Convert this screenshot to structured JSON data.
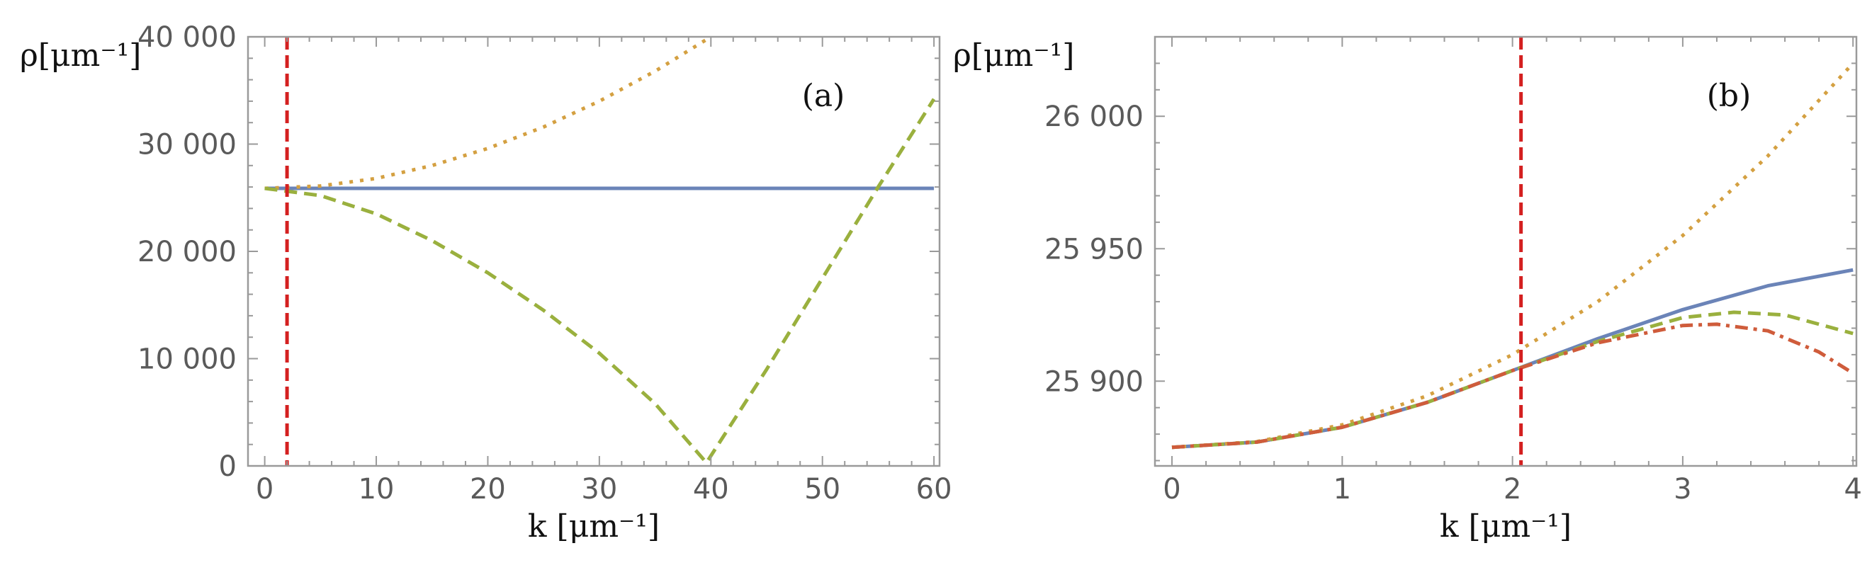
{
  "colors": {
    "blue": "#6b84b8",
    "orange": "#d4a041",
    "green": "#9ab03e",
    "red_dashdot": "#cf5c3b",
    "vline": "#d42020"
  },
  "chart_data": [
    {
      "type": "line",
      "panel_label": "(a)",
      "xlabel": "k [μm⁻¹]",
      "ylabel": "ρ[μm⁻¹]",
      "xlim": [
        -1.5,
        60.5
      ],
      "ylim": [
        0,
        40000
      ],
      "x_ticks": [
        0,
        10,
        20,
        30,
        40,
        50,
        60
      ],
      "y_ticks": [
        0,
        10000,
        20000,
        30000,
        40000
      ],
      "x_tick_labels": [
        "0",
        "10",
        "20",
        "30",
        "40",
        "50",
        "60"
      ],
      "y_tick_labels": [
        "0",
        "10 000",
        "20 000",
        "30 000",
        "40 000"
      ],
      "vline_x": 2,
      "series": [
        {
          "color_key": "blue",
          "dash": "solid",
          "x": [
            0,
            60
          ],
          "y": [
            25875,
            25875
          ]
        },
        {
          "color_key": "orange",
          "dash": "dot",
          "x": [
            0,
            5,
            10,
            15,
            20,
            25,
            30,
            35,
            40
          ],
          "y": [
            25875,
            26100,
            26800,
            28000,
            29600,
            31600,
            34000,
            36800,
            40000
          ]
        },
        {
          "color_key": "green",
          "dash": "dash",
          "x": [
            0,
            5,
            10,
            15,
            20,
            25,
            30,
            35,
            39.6,
            45,
            50,
            55,
            60
          ],
          "y": [
            25875,
            25200,
            23500,
            21000,
            18000,
            14500,
            10500,
            5800,
            300,
            9000,
            17500,
            26000,
            34200
          ]
        }
      ]
    },
    {
      "type": "line",
      "panel_label": "(b)",
      "xlabel": "k [μm⁻¹]",
      "ylabel": "ρ[μm⁻¹]",
      "xlim": [
        -0.1,
        4.02
      ],
      "ylim": [
        25868,
        26030
      ],
      "x_ticks": [
        0,
        1,
        2,
        3,
        4
      ],
      "y_ticks": [
        25900,
        25950,
        26000
      ],
      "x_tick_labels": [
        "0",
        "1",
        "2",
        "3",
        "4"
      ],
      "y_tick_labels": [
        "25 900",
        "25 950",
        "26 000"
      ],
      "vline_x": 2.05,
      "series": [
        {
          "color_key": "blue",
          "dash": "solid",
          "x": [
            0,
            0.5,
            1,
            1.5,
            2,
            2.5,
            3,
            3.5,
            4
          ],
          "y": [
            25875,
            25877,
            25882.6,
            25892,
            25904,
            25916,
            25927,
            25936,
            25942
          ]
        },
        {
          "color_key": "orange",
          "dash": "dot",
          "x": [
            0,
            0.5,
            1,
            1.5,
            2,
            2.5,
            3,
            3.5,
            4
          ],
          "y": [
            25875,
            25877.2,
            25883.5,
            25894.5,
            25910,
            25930,
            25955,
            25985,
            26020
          ]
        },
        {
          "color_key": "green",
          "dash": "dash",
          "x": [
            0,
            0.5,
            1,
            1.5,
            2,
            2.5,
            3,
            3.3,
            3.6,
            4
          ],
          "y": [
            25875,
            25877,
            25882.6,
            25892,
            25904,
            25915,
            25924,
            25926,
            25925,
            25918
          ]
        },
        {
          "color_key": "red_dashdot",
          "dash": "dashdot",
          "x": [
            0,
            0.5,
            1,
            1.5,
            2,
            2.5,
            3,
            3.2,
            3.5,
            3.8,
            4
          ],
          "y": [
            25875,
            25877,
            25882.6,
            25892,
            25904,
            25914.5,
            25921,
            25921.5,
            25919,
            25911,
            25903
          ]
        }
      ]
    }
  ]
}
